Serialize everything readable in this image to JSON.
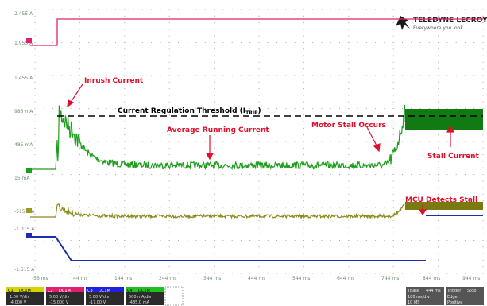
{
  "brand": {
    "name": "TELEDYNE LECROY",
    "tagline": "Everywhere you look"
  },
  "y_axis_labels": [
    "2.455 A",
    "1.955 A",
    "1.455 A",
    "985 mA",
    "485 mA",
    "15 mA",
    "-515 mA",
    "-1.015 A",
    "-1.515 A"
  ],
  "time_axis_labels": [
    "-56 ms",
    "44 ms",
    "144 ms",
    "244 ms",
    "344 ms",
    "444 ms",
    "544 ms",
    "644 ms",
    "744 ms",
    "844 ms",
    "944 ms"
  ],
  "annotations": {
    "inrush": "Inrush Current",
    "threshold_main": "Current Regulation Threshold (I",
    "threshold_sub": "TRIP",
    "threshold_close": ")",
    "average": "Average Running Current",
    "motor_stall": "Motor Stall Occurs",
    "stall_current": "Stall Current",
    "mcu_detects": "MCU Detects Stall"
  },
  "channels": [
    {
      "id": "C1",
      "name": "DC1M",
      "scale": "1.00 V/div",
      "offset": "-4.000 V",
      "color": "#d4d400"
    },
    {
      "id": "C2",
      "name": "DC1M",
      "scale": "5.00 V/div",
      "offset": "-15.000 V",
      "color": "#e0206e"
    },
    {
      "id": "C3",
      "name": "DC1M",
      "scale": "5.00 V/div",
      "offset": "-17.00 V",
      "color": "#2020e0"
    },
    {
      "id": "C4",
      "name": "DC1M",
      "scale": "500 mA/div",
      "offset": "-485.0 mA",
      "color": "#20c020"
    }
  ],
  "timebase": {
    "label": "Tbase",
    "value": "444 ms",
    "sub1": "100 ms/div",
    "sub2": "10 MS"
  },
  "trigger": {
    "label": "Trigger",
    "value": "Stop",
    "sub1": "Edge",
    "sub2": "Positive"
  },
  "colors": {
    "pink_trace": "#e0206e",
    "green_trace": "#1e9e1e",
    "olive_trace": "#8a8a1a",
    "blue_trace": "#1e2ea8",
    "annotation": "#e0102a"
  }
}
